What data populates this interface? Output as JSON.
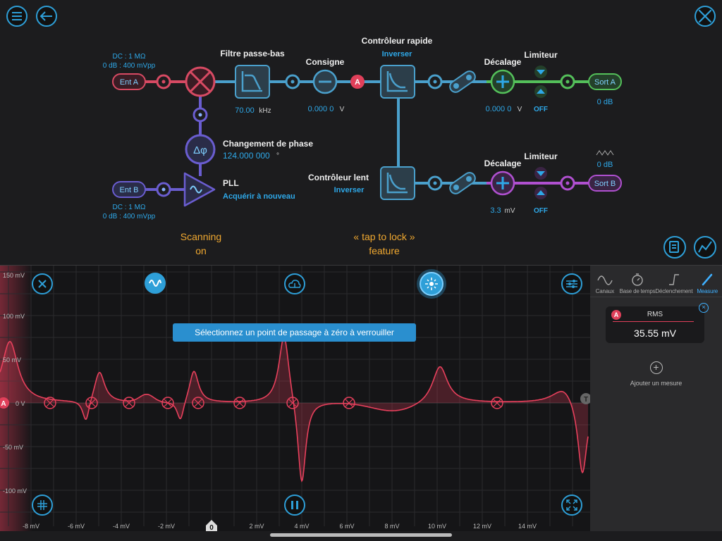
{
  "toolbar": {
    "menu_icon": "menu-icon",
    "back_icon": "back-arrow-icon",
    "tools_icon": "wrench-screwdriver-icon"
  },
  "diagram": {
    "input_a": {
      "label": "Ent A",
      "info1": "DC : 1 MΩ",
      "info2": "0 dB : 400 mVpp"
    },
    "input_b": {
      "label": "Ent B",
      "info1": "DC : 1 MΩ",
      "info2": "0 dB : 400 mVpp"
    },
    "lowpass": {
      "title": "Filtre passe-bas",
      "value": "70.00",
      "unit": "kHz"
    },
    "setpoint": {
      "title": "Consigne",
      "value": "0.000 0",
      "unit": "V",
      "marker": "A"
    },
    "fast": {
      "title": "Contrôleur rapide",
      "action": "Inverser"
    },
    "slow": {
      "title": "Contrôleur lent",
      "action": "Inverser"
    },
    "phase": {
      "title": "Changement de phase",
      "value": "124.000 000",
      "unit": "°",
      "symbol": "Δφ"
    },
    "pll": {
      "title": "PLL",
      "action": "Acquérir à nouveau"
    },
    "offset_a": {
      "title": "Décalage",
      "value": "0.000 0",
      "unit": "V"
    },
    "offset_b": {
      "title": "Décalage",
      "value": "3.3",
      "unit": "mV"
    },
    "limiter_a": {
      "title": "Limiteur",
      "state": "OFF"
    },
    "limiter_b": {
      "title": "Limiteur",
      "state": "OFF"
    },
    "output_a": {
      "label": "Sort A",
      "value": "0 dB"
    },
    "output_b": {
      "label": "Sort B",
      "value": "0 dB"
    }
  },
  "callouts": {
    "scanning_line1": "Scanning",
    "scanning_line2": "on",
    "lock_line1": "« tap to lock »",
    "lock_line2": "feature"
  },
  "scope": {
    "lock_message": "Sélectionnez un point de passage à zéro à verrouiller",
    "channel_marker": "A",
    "trigger_marker": "T",
    "zero_marker": "0",
    "trace_color": "#e8405c",
    "y_ticks": [
      "150 mV",
      "100 mV",
      "50 mV",
      "0 V",
      "-50 mV",
      "-100 mV"
    ],
    "x_ticks": [
      "-8 mV",
      "-6 mV",
      "-4 mV",
      "-2 mV",
      "0",
      "2 mV",
      "4 mV",
      "6 mV",
      "8 mV",
      "10 mV",
      "12 mV",
      "14 mV"
    ]
  },
  "panel": {
    "tabs": [
      {
        "label": "Canaux",
        "icon": "sine-wave-icon"
      },
      {
        "label": "Base de temps",
        "icon": "stopwatch-icon"
      },
      {
        "label": "Déclenchement",
        "icon": "trigger-edge-icon"
      },
      {
        "label": "Measure",
        "icon": "ruler-icon"
      }
    ],
    "measure": {
      "badge": "A",
      "label": "RMS",
      "value": "35.55 mV"
    },
    "add_label": "Ajouter un mesure"
  }
}
